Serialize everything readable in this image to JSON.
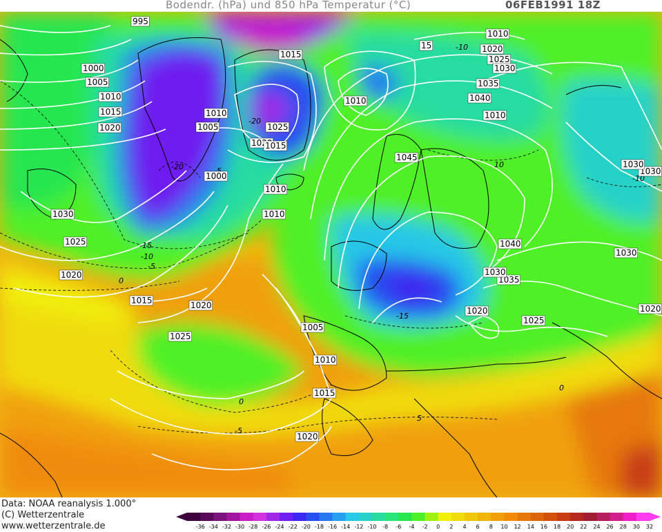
{
  "header": {
    "title": "Bodendr. (hPa) und 850 hPa Temperatur (°C)",
    "datetime": "06FEB1991 18Z"
  },
  "footer": {
    "line1": "Data: NOAA reanalysis 1.000°",
    "line2": "(C) Wetterzentrale",
    "line3": "www.wetterzentrale.de"
  },
  "colorbar": {
    "ticks": [
      "-36",
      "-34",
      "-32",
      "-30",
      "-28",
      "-26",
      "-24",
      "-22",
      "-20",
      "-18",
      "-16",
      "-14",
      "-12",
      "-10",
      "-8",
      "-6",
      "-4",
      "-2",
      "0",
      "2",
      "4",
      "6",
      "8",
      "10",
      "12",
      "14",
      "16",
      "18",
      "20",
      "22",
      "24",
      "26",
      "28",
      "30",
      "32"
    ],
    "colors": [
      "#3c003c",
      "#5a0a5a",
      "#7a127a",
      "#a014a0",
      "#c81ec8",
      "#d232dc",
      "#a028e6",
      "#6e1ef0",
      "#3c28f0",
      "#2850f0",
      "#2878f0",
      "#28a0f0",
      "#28c8e6",
      "#28d2c8",
      "#28dca0",
      "#28e678",
      "#28e650",
      "#50f028",
      "#a0f014",
      "#f0f00a",
      "#f0dc0a",
      "#f0c80a",
      "#f0b40a",
      "#f0a00a",
      "#f08c0a",
      "#e6780a",
      "#dc640a",
      "#d2500a",
      "#c83c14",
      "#b4281e",
      "#a01e32",
      "#b41e5a",
      "#d21e8c",
      "#f01ec8",
      "#ff3cf0"
    ]
  },
  "isobar_labels": [
    "995",
    "1000",
    "1005",
    "1010",
    "1015",
    "1020",
    "1010",
    "1005",
    "1000",
    "1030",
    "1025",
    "1020",
    "1015",
    "1020",
    "1025",
    "1015",
    "1025",
    "1020",
    "1015",
    "1010",
    "1010",
    "1010",
    "1005",
    "1010",
    "1015",
    "1020",
    "1010",
    "15",
    "1020",
    "1025",
    "1030",
    "1035",
    "1040",
    "1010",
    "1045",
    "1030",
    "1040",
    "1030",
    "1035",
    "1030",
    "1020",
    "1025",
    "1030",
    "1020"
  ],
  "temp_labels": [
    "-20",
    "-20",
    "-15",
    "-10",
    "-5",
    "0",
    "0",
    "-5",
    "-10",
    "-15",
    "10",
    "-10",
    "5",
    "0",
    "-5"
  ]
}
